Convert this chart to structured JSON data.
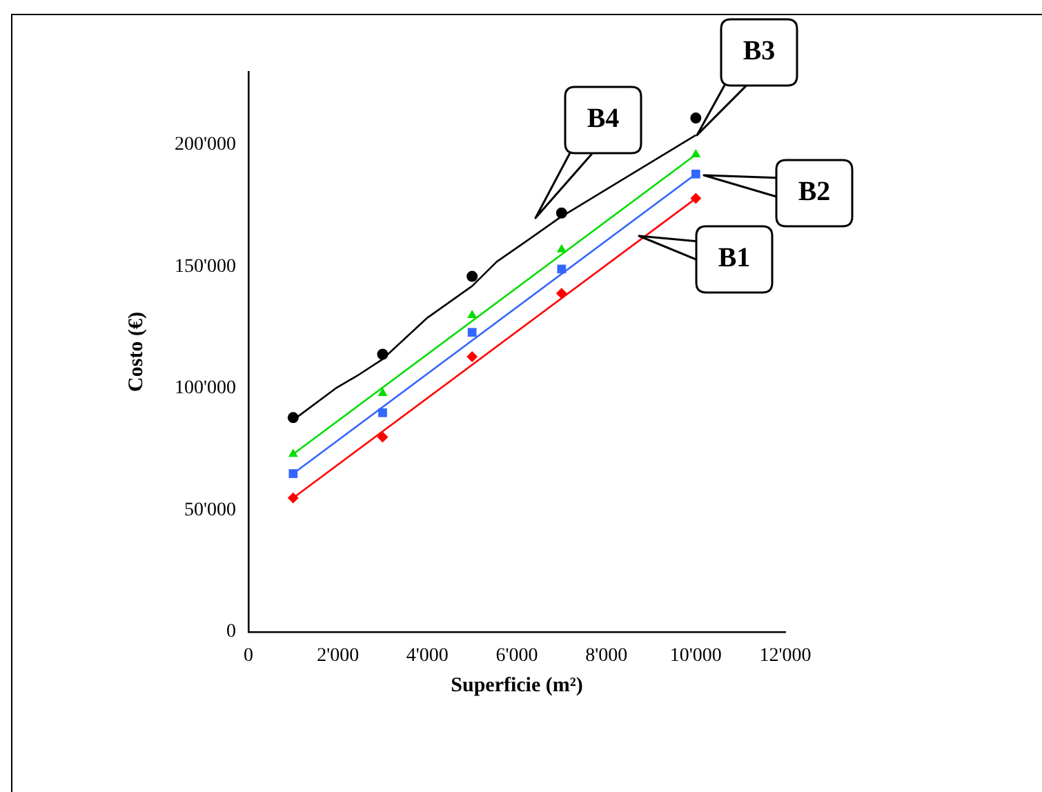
{
  "chart_data": {
    "type": "scatter",
    "xlabel": "Superficie (m²)",
    "ylabel": "Costo (€)",
    "xlim": [
      0,
      12000
    ],
    "ylim": [
      0,
      230000
    ],
    "xticks": [
      0,
      {
        "value": 2000,
        "label": "2'000"
      },
      {
        "value": 4000,
        "label": "4'000"
      },
      {
        "value": 6000,
        "label": "6'000"
      },
      {
        "value": 8000,
        "label": "8'000"
      },
      {
        "value": 10000,
        "label": "10'000"
      },
      {
        "value": 12000,
        "label": "12'000"
      }
    ],
    "yticks": [
      0,
      {
        "value": 50000,
        "label": "50'000"
      },
      {
        "value": 100000,
        "label": "100'000"
      },
      {
        "value": 150000,
        "label": "150'000"
      },
      {
        "value": 200000,
        "label": "200'000"
      }
    ],
    "grid": false,
    "legend": false,
    "series": [
      {
        "color": "#ff0000",
        "marker": "diamond",
        "x": [
          1000,
          3000,
          5000,
          7000,
          10000
        ],
        "values": [
          55000,
          80000,
          113000,
          139000,
          178000
        ]
      },
      {
        "type": "line",
        "color": "#ff0000",
        "marker": "none",
        "x": [
          1000,
          10000
        ],
        "values": [
          55000,
          178000
        ]
      },
      {
        "color": "#3366ff",
        "marker": "square",
        "x": [
          1000,
          3000,
          5000,
          7000,
          10000
        ],
        "values": [
          65000,
          90000,
          123000,
          149000,
          188000
        ]
      },
      {
        "type": "line",
        "color": "#3366ff",
        "marker": "none",
        "x": [
          1000,
          10000
        ],
        "values": [
          65000,
          188000
        ]
      },
      {
        "color": "#00dd00",
        "marker": "triangle",
        "x": [
          1000,
          3000,
          5000,
          7000,
          10000
        ],
        "values": [
          73000,
          98000,
          130000,
          157000,
          196000
        ]
      },
      {
        "type": "line",
        "color": "#00dd00",
        "marker": "none",
        "x": [
          1000,
          10000
        ],
        "values": [
          73000,
          196000
        ]
      },
      {
        "color": "#000000",
        "marker": "circle",
        "x": [
          1000,
          3000,
          5000,
          7000,
          10000
        ],
        "values": [
          88000,
          114000,
          146000,
          172000,
          211000
        ]
      },
      {
        "type": "line",
        "color": "#000000",
        "marker": "none",
        "x": [
          1000,
          1950,
          2500,
          3000,
          4000,
          5000,
          5550,
          6100,
          6950,
          10000
        ],
        "values": [
          87000,
          100000,
          106000,
          112000,
          129000,
          142000,
          152000,
          159000,
          170000,
          204000
        ]
      }
    ],
    "annotations": [
      "B1",
      "B2",
      "B3",
      "B4"
    ]
  }
}
